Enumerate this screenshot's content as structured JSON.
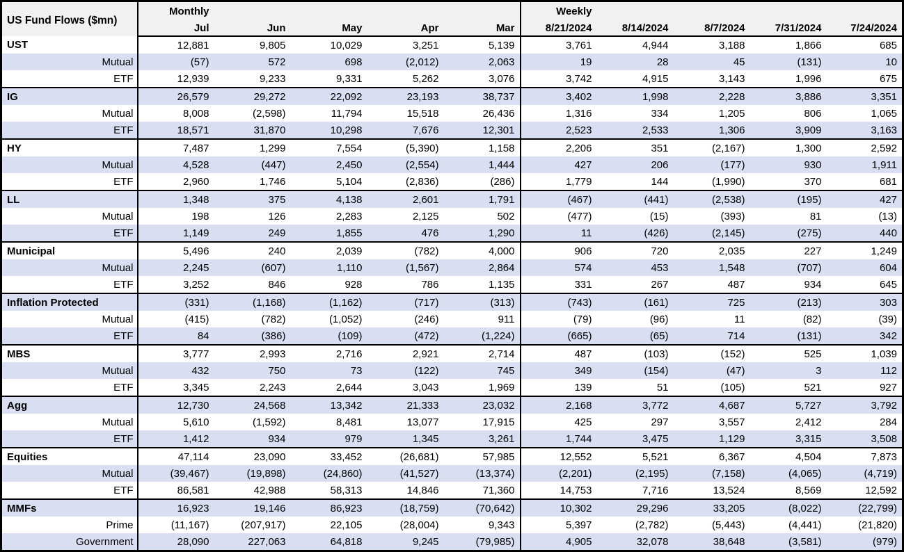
{
  "colors": {
    "stripe_bg": "#D9DEF2",
    "header_bg": "#F1F1F1",
    "border": "#000000",
    "text": "#000000"
  },
  "chart_data": {
    "type": "table",
    "title": "US Fund Flows ($mn)",
    "units": "$mn",
    "negative_format": "parentheses",
    "sections": [
      {
        "label": "Monthly",
        "columns": [
          "Jul",
          "Jun",
          "May",
          "Apr",
          "Mar"
        ]
      },
      {
        "label": "Weekly",
        "columns": [
          "8/21/2024",
          "8/14/2024",
          "8/7/2024",
          "7/31/2024",
          "7/24/2024"
        ]
      }
    ],
    "rows": [
      {
        "label": "UST",
        "level": "category",
        "monthly": [
          12881,
          9805,
          10029,
          3251,
          5139
        ],
        "weekly": [
          3761,
          4944,
          3188,
          1866,
          685
        ]
      },
      {
        "label": "Mutual",
        "level": "sub",
        "monthly": [
          -57,
          572,
          698,
          -2012,
          2063
        ],
        "weekly": [
          19,
          28,
          45,
          -131,
          10
        ]
      },
      {
        "label": "ETF",
        "level": "sub",
        "monthly": [
          12939,
          9233,
          9331,
          5262,
          3076
        ],
        "weekly": [
          3742,
          4915,
          3143,
          1996,
          675
        ]
      },
      {
        "label": "IG",
        "level": "category",
        "monthly": [
          26579,
          29272,
          22092,
          23193,
          38737
        ],
        "weekly": [
          3402,
          1998,
          2228,
          3886,
          3351
        ]
      },
      {
        "label": "Mutual",
        "level": "sub",
        "monthly": [
          8008,
          -2598,
          11794,
          15518,
          26436
        ],
        "weekly": [
          1316,
          334,
          1205,
          806,
          1065
        ]
      },
      {
        "label": "ETF",
        "level": "sub",
        "monthly": [
          18571,
          31870,
          10298,
          7676,
          12301
        ],
        "weekly": [
          2523,
          2533,
          1306,
          3909,
          3163
        ]
      },
      {
        "label": "HY",
        "level": "category",
        "monthly": [
          7487,
          1299,
          7554,
          -5390,
          1158
        ],
        "weekly": [
          2206,
          351,
          -2167,
          1300,
          2592
        ]
      },
      {
        "label": "Mutual",
        "level": "sub",
        "monthly": [
          4528,
          -447,
          2450,
          -2554,
          1444
        ],
        "weekly": [
          427,
          206,
          -177,
          930,
          1911
        ]
      },
      {
        "label": "ETF",
        "level": "sub",
        "monthly": [
          2960,
          1746,
          5104,
          -2836,
          -286
        ],
        "weekly": [
          1779,
          144,
          -1990,
          370,
          681
        ]
      },
      {
        "label": "LL",
        "level": "category",
        "monthly": [
          1348,
          375,
          4138,
          2601,
          1791
        ],
        "weekly": [
          -467,
          -441,
          -2538,
          -195,
          427
        ]
      },
      {
        "label": "Mutual",
        "level": "sub",
        "monthly": [
          198,
          126,
          2283,
          2125,
          502
        ],
        "weekly": [
          -477,
          -15,
          -393,
          81,
          -13
        ]
      },
      {
        "label": "ETF",
        "level": "sub",
        "monthly": [
          1149,
          249,
          1855,
          476,
          1290
        ],
        "weekly": [
          11,
          -426,
          -2145,
          -275,
          440
        ]
      },
      {
        "label": "Municipal",
        "level": "category",
        "monthly": [
          5496,
          240,
          2039,
          -782,
          4000
        ],
        "weekly": [
          906,
          720,
          2035,
          227,
          1249
        ]
      },
      {
        "label": "Mutual",
        "level": "sub",
        "monthly": [
          2245,
          -607,
          1110,
          -1567,
          2864
        ],
        "weekly": [
          574,
          453,
          1548,
          -707,
          604
        ]
      },
      {
        "label": "ETF",
        "level": "sub",
        "monthly": [
          3252,
          846,
          928,
          786,
          1135
        ],
        "weekly": [
          331,
          267,
          487,
          934,
          645
        ]
      },
      {
        "label": "Inflation Protected",
        "level": "category",
        "monthly": [
          -331,
          -1168,
          -1162,
          -717,
          -313
        ],
        "weekly": [
          -743,
          -161,
          725,
          -213,
          303
        ]
      },
      {
        "label": "Mutual",
        "level": "sub",
        "monthly": [
          -415,
          -782,
          -1052,
          -246,
          911
        ],
        "weekly": [
          -79,
          -96,
          11,
          -82,
          -39
        ]
      },
      {
        "label": "ETF",
        "level": "sub",
        "monthly": [
          84,
          -386,
          -109,
          -472,
          -1224
        ],
        "weekly": [
          -665,
          -65,
          714,
          -131,
          342
        ]
      },
      {
        "label": "MBS",
        "level": "category",
        "monthly": [
          3777,
          2993,
          2716,
          2921,
          2714
        ],
        "weekly": [
          487,
          -103,
          -152,
          525,
          1039
        ]
      },
      {
        "label": "Mutual",
        "level": "sub",
        "monthly": [
          432,
          750,
          73,
          -122,
          745
        ],
        "weekly": [
          349,
          -154,
          -47,
          3,
          112
        ]
      },
      {
        "label": "ETF",
        "level": "sub",
        "monthly": [
          3345,
          2243,
          2644,
          3043,
          1969
        ],
        "weekly": [
          139,
          51,
          -105,
          521,
          927
        ]
      },
      {
        "label": "Agg",
        "level": "category",
        "monthly": [
          12730,
          24568,
          13342,
          21333,
          23032
        ],
        "weekly": [
          2168,
          3772,
          4687,
          5727,
          3792
        ]
      },
      {
        "label": "Mutual",
        "level": "sub",
        "monthly": [
          5610,
          -1592,
          8481,
          13077,
          17915
        ],
        "weekly": [
          425,
          297,
          3557,
          2412,
          284
        ]
      },
      {
        "label": "ETF",
        "level": "sub",
        "monthly": [
          1412,
          934,
          979,
          1345,
          3261
        ],
        "weekly": [
          1744,
          3475,
          1129,
          3315,
          3508
        ]
      },
      {
        "label": "Equities",
        "level": "category",
        "monthly": [
          47114,
          23090,
          33452,
          -26681,
          57985
        ],
        "weekly": [
          12552,
          5521,
          6367,
          4504,
          7873
        ]
      },
      {
        "label": "Mutual",
        "level": "sub",
        "monthly": [
          -39467,
          -19898,
          -24860,
          -41527,
          -13374
        ],
        "weekly": [
          -2201,
          -2195,
          -7158,
          -4065,
          -4719
        ]
      },
      {
        "label": "ETF",
        "level": "sub",
        "monthly": [
          86581,
          42988,
          58313,
          14846,
          71360
        ],
        "weekly": [
          14753,
          7716,
          13524,
          8569,
          12592
        ]
      },
      {
        "label": "MMFs",
        "level": "category",
        "monthly": [
          16923,
          19146,
          86923,
          -18759,
          -70642
        ],
        "weekly": [
          10302,
          29296,
          33205,
          -8022,
          -22799
        ]
      },
      {
        "label": "Prime",
        "level": "sub",
        "monthly": [
          -11167,
          -207917,
          22105,
          -28004,
          9343
        ],
        "weekly": [
          5397,
          -2782,
          -5443,
          -4441,
          -21820
        ]
      },
      {
        "label": "Government",
        "level": "sub",
        "monthly": [
          28090,
          227063,
          64818,
          9245,
          -79985
        ],
        "weekly": [
          4905,
          32078,
          38648,
          -3581,
          -979
        ]
      }
    ]
  }
}
